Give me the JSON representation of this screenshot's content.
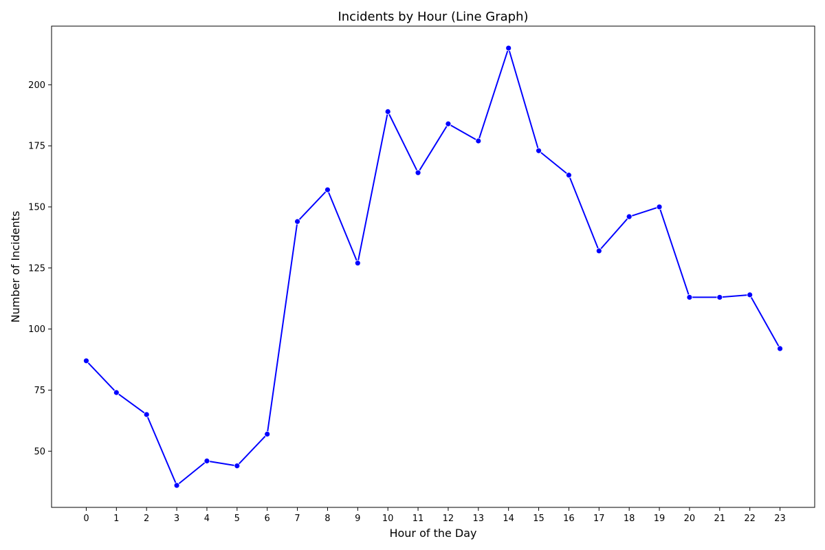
{
  "chart_data": {
    "type": "line",
    "title": "Incidents by Hour (Line Graph)",
    "xlabel": "Hour of the Day",
    "ylabel": "Number of Incidents",
    "categories": [
      "0",
      "1",
      "2",
      "3",
      "4",
      "5",
      "6",
      "7",
      "8",
      "9",
      "10",
      "11",
      "12",
      "13",
      "14",
      "15",
      "16",
      "17",
      "18",
      "19",
      "20",
      "21",
      "22",
      "23"
    ],
    "x": [
      0,
      1,
      2,
      3,
      4,
      5,
      6,
      7,
      8,
      9,
      10,
      11,
      12,
      13,
      14,
      15,
      16,
      17,
      18,
      19,
      20,
      21,
      22,
      23
    ],
    "series": [
      {
        "values": [
          87,
          74,
          65,
          36,
          46,
          44,
          57,
          144,
          157,
          127,
          189,
          164,
          184,
          177,
          215,
          173,
          163,
          132,
          146,
          150,
          113,
          113,
          114,
          92
        ],
        "color": "#0000ff",
        "marker": "circle"
      }
    ],
    "yticks": [
      50,
      75,
      100,
      125,
      150,
      175,
      200
    ],
    "xlim": [
      -1.15,
      24.15
    ],
    "ylim": [
      27,
      224
    ],
    "grid": false,
    "legend": "none"
  }
}
